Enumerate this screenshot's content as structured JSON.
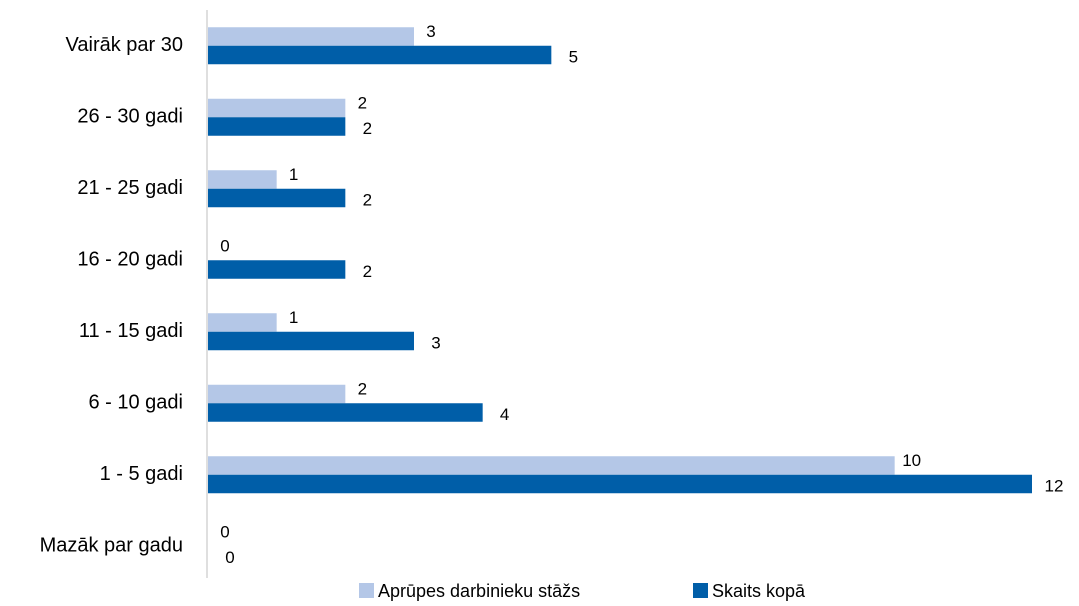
{
  "chart_data": {
    "type": "hbar",
    "categories": [
      "Vairāk par 30",
      "26 - 30 gadi",
      "21 - 25 gadi",
      "16 - 20 gadi",
      "11 - 15 gadi",
      "6 - 10 gadi",
      "1 - 5 gadi",
      "Mazāk par gadu"
    ],
    "series": [
      {
        "name": "Aprūpes darbinieku stāžs",
        "color": "#b4c7e7",
        "values": [
          3,
          2,
          1,
          0,
          1,
          2,
          10,
          0
        ]
      },
      {
        "name": "Skaits kopā",
        "color": "#005ea8",
        "values": [
          5,
          2,
          2,
          2,
          3,
          4,
          12,
          0
        ]
      }
    ],
    "xlim": [
      0,
      12
    ],
    "legend": "bottom"
  }
}
